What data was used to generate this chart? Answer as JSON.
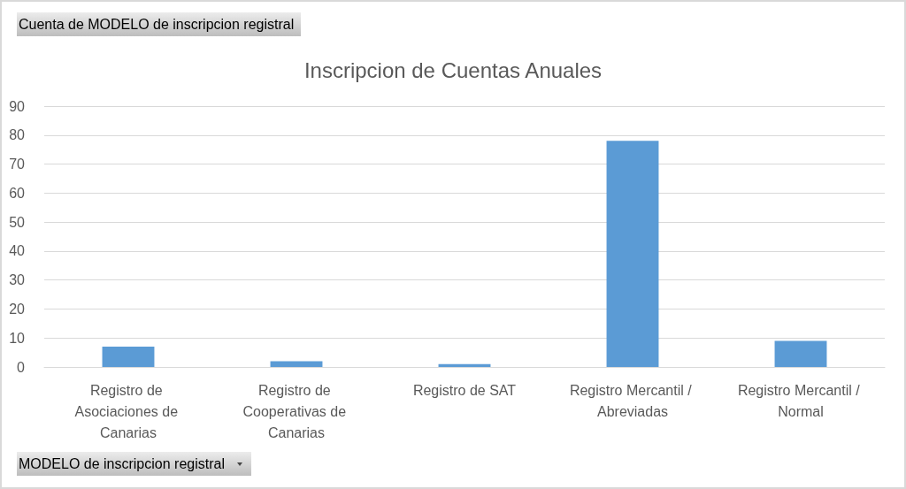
{
  "chart_data": {
    "type": "bar",
    "title": "Inscripcion de Cuentas Anuales",
    "categories": [
      "Registro de Asociaciones de Canarias",
      "Registro de Cooperativas de Canarias",
      "Registro de SAT",
      "Registro Mercantil / Abreviadas",
      "Registro Mercantil / Normal"
    ],
    "values": [
      7,
      2,
      1,
      78,
      9
    ],
    "color": "#5b9bd5",
    "ylim": [
      0,
      90
    ],
    "yticks": [
      0,
      10,
      20,
      30,
      40,
      50,
      60,
      70,
      80,
      90
    ],
    "grid": "y",
    "annotations": [
      "Cuenta de MODELO de inscripcion registral",
      "MODELO de inscripcion registral"
    ]
  }
}
